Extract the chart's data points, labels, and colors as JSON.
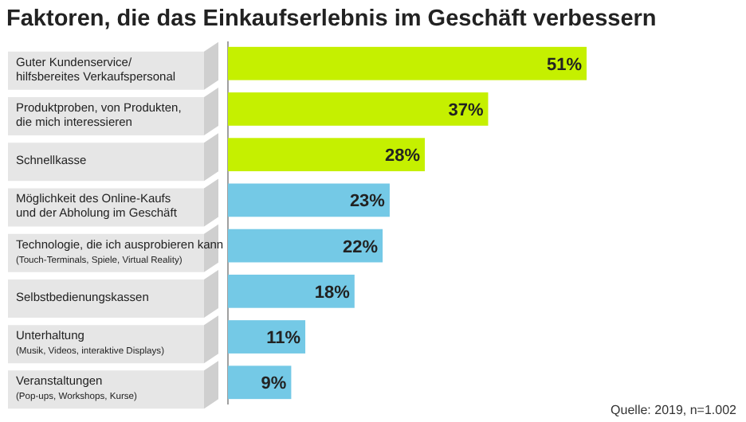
{
  "chart_data": {
    "type": "bar",
    "orientation": "horizontal",
    "title": "Faktoren, die das Einkaufserlebnis im Geschäft verbessern",
    "categories": [
      "Guter Kundenservice/\nhilfsbereites Verkaufspersonal",
      "Produktproben, von Produkten,\ndie mich interessieren",
      "Schnellkasse",
      "Möglichkeit des Online-Kaufs\nund der Abholung im Geschäft",
      "Technologie, die ich ausprobieren kann\n(Touch-Terminals, Spiele, Virtual Reality)",
      "Selbstbedienungskassen",
      "Unterhaltung\n(Musik, Videos, interaktive Displays)",
      "Veranstaltungen\n(Pop-ups, Workshops, Kurse)"
    ],
    "values": [
      51,
      37,
      28,
      23,
      22,
      18,
      11,
      9
    ],
    "colors": [
      "#c5f000",
      "#c5f000",
      "#c5f000",
      "#74c9e6",
      "#74c9e6",
      "#74c9e6",
      "#74c9e6",
      "#74c9e6"
    ],
    "value_labels": [
      "51%",
      "37%",
      "28%",
      "23%",
      "22%",
      "18%",
      "11%",
      "9%"
    ],
    "annotations": [
      "Quelle: 2019, n=1.002"
    ]
  }
}
